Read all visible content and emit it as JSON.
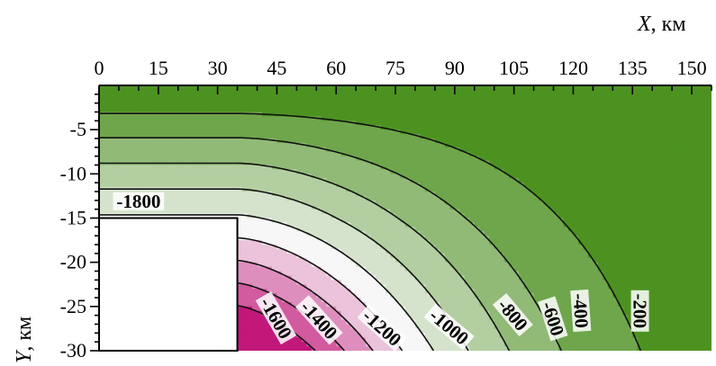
{
  "chart_data": {
    "type": "contour",
    "x_axis": {
      "label": "X, км",
      "label_italic": "X",
      "label_unit": ", км",
      "ticks": [
        0,
        15,
        30,
        45,
        60,
        75,
        90,
        105,
        120,
        135,
        150
      ],
      "range": [
        0,
        155
      ],
      "minor_step": 5,
      "position": "top"
    },
    "y_axis": {
      "label": "Y, км",
      "label_italic": "Y",
      "label_unit": ", км",
      "ticks": [
        -5,
        -10,
        -15,
        -20,
        -25,
        -30
      ],
      "range": [
        -30,
        0
      ],
      "minor_step": 1
    },
    "masked_region": {
      "x": [
        0,
        35
      ],
      "y": [
        -30,
        -15
      ]
    },
    "contour_levels": [
      -1800,
      -1600,
      -1400,
      -1200,
      -1000,
      -800,
      -600,
      -400,
      -200
    ],
    "contour_labels": [
      {
        "text": "-1800",
        "x": 10,
        "y": -13.5,
        "angle": 0
      },
      {
        "text": "-1600",
        "x": 44,
        "y": -26.5,
        "angle": 60
      },
      {
        "text": "-1400",
        "x": 55,
        "y": -26.8,
        "angle": 48
      },
      {
        "text": "-1200",
        "x": 71,
        "y": -27.7,
        "angle": 42
      },
      {
        "text": "-1000",
        "x": 88,
        "y": -27.6,
        "angle": 40
      },
      {
        "text": "-800",
        "x": 104,
        "y": -26.2,
        "angle": 50
      },
      {
        "text": "-600",
        "x": 114,
        "y": -26.5,
        "angle": 72
      },
      {
        "text": "-400",
        "x": 121,
        "y": -25.5,
        "angle": 86
      },
      {
        "text": "-200",
        "x": 136,
        "y": -25.5,
        "angle": 90
      }
    ],
    "colormap": {
      "low": "#c2187a",
      "mid": "#f7f7f7",
      "high": "#4d9221"
    }
  }
}
